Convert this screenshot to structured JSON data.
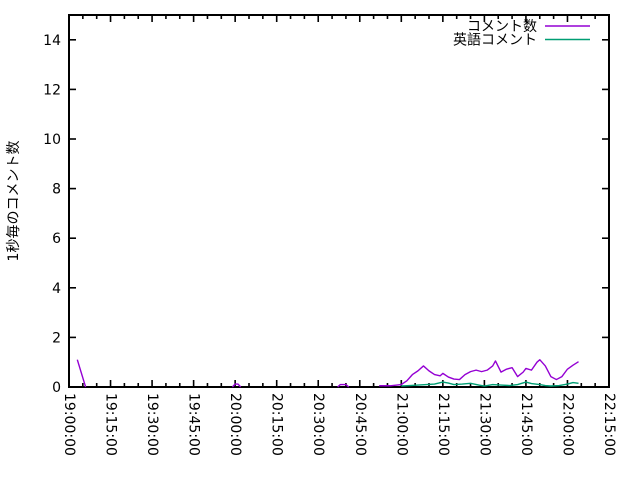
{
  "chart_data": {
    "type": "line",
    "title": "",
    "xlabel": "",
    "ylabel": "1秒毎のコメント数",
    "ylim": [
      0,
      15
    ],
    "yticks": [
      0,
      2,
      4,
      6,
      8,
      10,
      12,
      14
    ],
    "xlim": [
      "19:00:00",
      "22:15:00"
    ],
    "xticks": [
      "19:00:00",
      "19:15:00",
      "19:30:00",
      "19:45:00",
      "20:00:00",
      "20:15:00",
      "20:30:00",
      "20:45:00",
      "21:00:00",
      "21:15:00",
      "21:30:00",
      "21:45:00",
      "22:00:00",
      "22:15:00"
    ],
    "x_minor_tick_interval_minutes": 5,
    "grid": "off",
    "legend_position": "top-right-inside",
    "axis_color": "#000000",
    "series": [
      {
        "name": "コメント数",
        "color": "#9400d3",
        "segments": [
          [
            [
              "19:03",
              1.1
            ],
            [
              "19:06",
              0.0
            ]
          ],
          [
            [
              "19:59",
              0.0
            ],
            [
              "20:00",
              0.12
            ],
            [
              "20:01",
              0.12
            ],
            [
              "20:02",
              0.0
            ]
          ],
          [
            [
              "20:37",
              0.0
            ],
            [
              "20:38",
              0.1
            ],
            [
              "20:40",
              0.1
            ],
            [
              "20:41",
              0.0
            ]
          ],
          [
            [
              "20:52",
              0.05
            ],
            [
              "20:56",
              0.05
            ],
            [
              "21:00",
              0.1
            ],
            [
              "21:02",
              0.25
            ],
            [
              "21:04",
              0.5
            ],
            [
              "21:06",
              0.65
            ],
            [
              "21:08",
              0.85
            ],
            [
              "21:10",
              0.65
            ],
            [
              "21:12",
              0.5
            ],
            [
              "21:14",
              0.45
            ],
            [
              "21:15",
              0.55
            ],
            [
              "21:17",
              0.4
            ],
            [
              "21:19",
              0.32
            ],
            [
              "21:21",
              0.3
            ],
            [
              "21:23",
              0.5
            ],
            [
              "21:25",
              0.62
            ],
            [
              "21:27",
              0.68
            ],
            [
              "21:29",
              0.62
            ],
            [
              "21:31",
              0.68
            ],
            [
              "21:33",
              0.85
            ],
            [
              "21:34",
              1.05
            ],
            [
              "21:36",
              0.6
            ],
            [
              "21:38",
              0.72
            ],
            [
              "21:40",
              0.78
            ],
            [
              "21:42",
              0.42
            ],
            [
              "21:44",
              0.6
            ],
            [
              "21:45",
              0.75
            ],
            [
              "21:47",
              0.68
            ],
            [
              "21:49",
              1.0
            ],
            [
              "21:50",
              1.1
            ],
            [
              "21:52",
              0.85
            ],
            [
              "21:54",
              0.42
            ],
            [
              "21:56",
              0.3
            ],
            [
              "21:58",
              0.42
            ],
            [
              "22:00",
              0.72
            ],
            [
              "22:02",
              0.88
            ],
            [
              "22:04",
              1.02
            ]
          ]
        ]
      },
      {
        "name": "英語コメント",
        "color": "#009e73",
        "segments": [
          [
            [
              "21:00",
              0.04
            ],
            [
              "21:03",
              0.06
            ],
            [
              "21:06",
              0.08
            ],
            [
              "21:09",
              0.1
            ],
            [
              "21:12",
              0.12
            ],
            [
              "21:15",
              0.2
            ],
            [
              "21:17",
              0.16
            ],
            [
              "21:19",
              0.1
            ],
            [
              "21:22",
              0.12
            ],
            [
              "21:25",
              0.15
            ],
            [
              "21:28",
              0.08
            ],
            [
              "21:30",
              0.04
            ],
            [
              "21:33",
              0.1
            ],
            [
              "21:36",
              0.08
            ],
            [
              "21:39",
              0.06
            ],
            [
              "21:42",
              0.1
            ],
            [
              "21:45",
              0.2
            ],
            [
              "21:47",
              0.14
            ],
            [
              "21:50",
              0.1
            ],
            [
              "21:52",
              0.06
            ],
            [
              "21:54",
              0.04
            ],
            [
              "21:57",
              0.06
            ],
            [
              "22:00",
              0.12
            ],
            [
              "22:02",
              0.18
            ],
            [
              "22:04",
              0.15
            ]
          ]
        ]
      }
    ]
  }
}
